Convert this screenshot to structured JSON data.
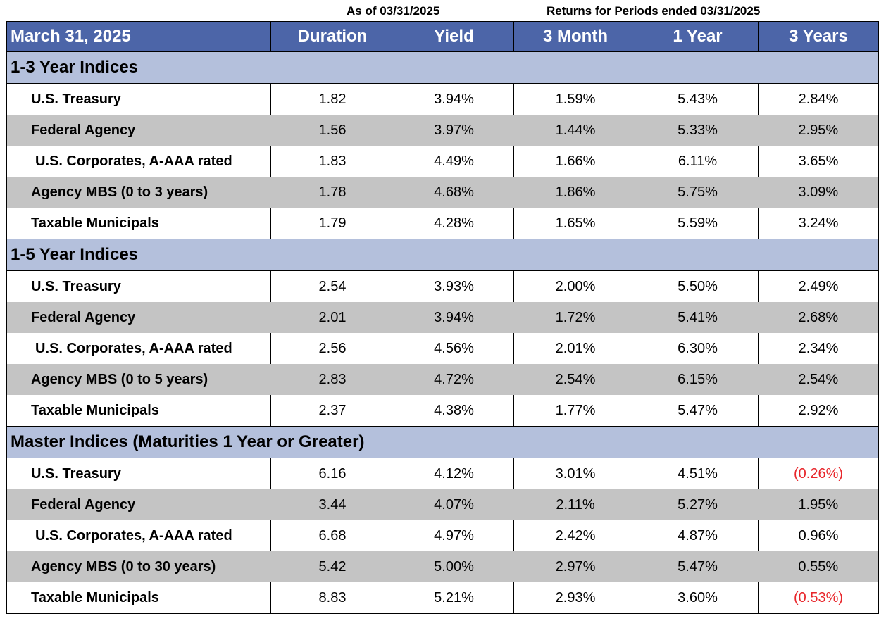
{
  "top_labels": {
    "as_of": "As of 03/31/2025",
    "returns": "Returns for Periods ended 03/31/2025"
  },
  "header": [
    "March 31, 2025",
    "Duration",
    "Yield",
    "3 Month",
    "1 Year",
    "3 Years"
  ],
  "colors": {
    "header_bg": "#4c65a8",
    "section_bg": "#b4c0dc",
    "shade_bg": "#c4c4c4",
    "negative": "#e8262b"
  },
  "sections": [
    {
      "title": "1-3 Year Indices",
      "rows": [
        {
          "name": "U.S. Treasury",
          "values": [
            "1.82",
            "3.94%",
            "1.59%",
            "5.43%",
            "2.84%"
          ]
        },
        {
          "name": "Federal Agency",
          "values": [
            "1.56",
            "3.97%",
            "1.44%",
            "5.33%",
            "2.95%"
          ]
        },
        {
          "name": "U.S. Corporates, A-AAA rated",
          "values": [
            "1.83",
            "4.49%",
            "1.66%",
            "6.11%",
            "3.65%"
          ]
        },
        {
          "name": "Agency MBS (0 to 3 years)",
          "values": [
            "1.78",
            "4.68%",
            "1.86%",
            "5.75%",
            "3.09%"
          ]
        },
        {
          "name": "Taxable Municipals",
          "values": [
            "1.79",
            "4.28%",
            "1.65%",
            "5.59%",
            "3.24%"
          ]
        }
      ]
    },
    {
      "title": "1-5 Year Indices",
      "rows": [
        {
          "name": "U.S. Treasury",
          "values": [
            "2.54",
            "3.93%",
            "2.00%",
            "5.50%",
            "2.49%"
          ]
        },
        {
          "name": "Federal Agency",
          "values": [
            "2.01",
            "3.94%",
            "1.72%",
            "5.41%",
            "2.68%"
          ]
        },
        {
          "name": "U.S. Corporates, A-AAA rated",
          "values": [
            "2.56",
            "4.56%",
            "2.01%",
            "6.30%",
            "2.34%"
          ]
        },
        {
          "name": "Agency MBS (0 to 5 years)",
          "values": [
            "2.83",
            "4.72%",
            "2.54%",
            "6.15%",
            "2.54%"
          ]
        },
        {
          "name": "Taxable Municipals",
          "values": [
            "2.37",
            "4.38%",
            "1.77%",
            "5.47%",
            "2.92%"
          ]
        }
      ]
    },
    {
      "title": "Master Indices (Maturities 1 Year or Greater)",
      "rows": [
        {
          "name": "U.S. Treasury",
          "values": [
            "6.16",
            "4.12%",
            "3.01%",
            "4.51%",
            "(0.26%)"
          ]
        },
        {
          "name": "Federal Agency",
          "values": [
            "3.44",
            "4.07%",
            "2.11%",
            "5.27%",
            "1.95%"
          ]
        },
        {
          "name": "U.S. Corporates, A-AAA rated",
          "values": [
            "6.68",
            "4.97%",
            "2.42%",
            "4.87%",
            "0.96%"
          ]
        },
        {
          "name": "Agency MBS (0 to 30 years)",
          "values": [
            "5.42",
            "5.00%",
            "2.97%",
            "5.47%",
            "0.55%"
          ]
        },
        {
          "name": "Taxable Municipals",
          "values": [
            "8.83",
            "5.21%",
            "2.93%",
            "3.60%",
            "(0.53%)"
          ]
        }
      ]
    }
  ]
}
